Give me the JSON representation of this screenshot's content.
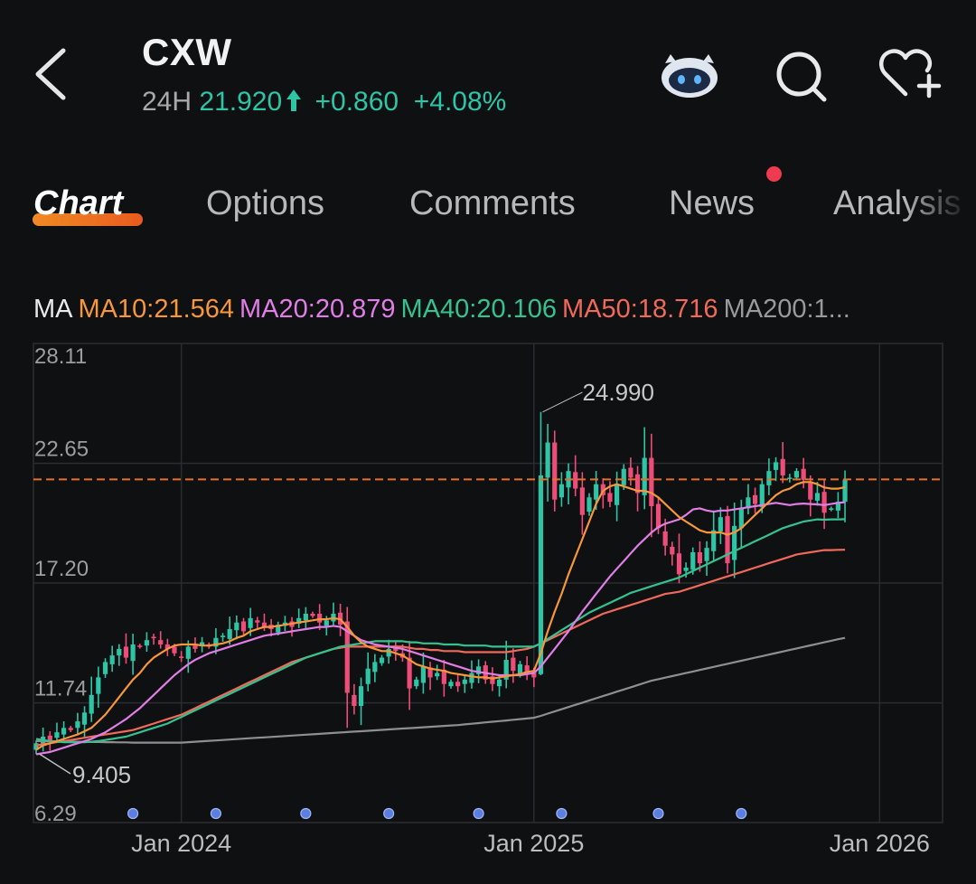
{
  "header": {
    "ticker": "CXW",
    "period": "24H",
    "price": "21.920",
    "change": "+0.860",
    "change_pct": "+4.08%",
    "up_color": "#2ec4a6"
  },
  "icons": [
    "back-icon",
    "robot-assistant-icon",
    "search-icon",
    "favorite-add-icon"
  ],
  "tabs": [
    {
      "label": "Chart",
      "active": true
    },
    {
      "label": "Options"
    },
    {
      "label": "Comments"
    },
    {
      "label": "News",
      "has_dot": true
    },
    {
      "label": "Analysis"
    }
  ],
  "ma_legend": {
    "label": "MA",
    "items": [
      {
        "text": "MA10:21.564",
        "color": "#f5973a"
      },
      {
        "text": "MA20:20.879",
        "color": "#e07ee6"
      },
      {
        "text": "MA40:20.106",
        "color": "#35c28f"
      },
      {
        "text": "MA50:18.716",
        "color": "#f06a5a"
      },
      {
        "text": "MA200:1...",
        "color": "#9a9a9a"
      }
    ]
  },
  "chart_data": {
    "type": "candlestick",
    "y_ticks": [
      "28.11",
      "22.65",
      "17.20",
      "11.74",
      "6.29"
    ],
    "y_tick_values": [
      28.11,
      22.65,
      17.2,
      11.74,
      6.29
    ],
    "x_ticks": [
      "Jan 2024",
      "Jan 2025",
      "Jan 2026"
    ],
    "x_tick_index": [
      21,
      72,
      122
    ],
    "total_slots": 132,
    "high_annotation": "24.990",
    "low_annotation": "9.405",
    "current_price": 21.92,
    "current_price_color": "#e8702a",
    "up_color": "#2ec4a6",
    "down_color": "#ee4d7a",
    "grid": true,
    "event_marker_index": [
      14,
      26,
      39,
      51,
      64,
      76,
      90,
      102
    ],
    "closes": [
      9.9,
      10.2,
      10.0,
      10.4,
      10.6,
      10.5,
      10.9,
      11.3,
      12.1,
      12.9,
      13.6,
      13.9,
      14.2,
      13.8,
      14.4,
      14.3,
      14.6,
      14.7,
      14.4,
      14.2,
      14.0,
      13.8,
      14.3,
      14.2,
      14.5,
      14.3,
      14.7,
      14.8,
      15.1,
      15.4,
      15.0,
      15.6,
      15.4,
      15.2,
      15.1,
      15.3,
      15.4,
      15.2,
      15.6,
      15.8,
      15.7,
      15.4,
      15.5,
      15.8,
      15.3,
      12.2,
      11.6,
      12.5,
      13.3,
      13.6,
      13.8,
      14.2,
      14.1,
      13.8,
      12.4,
      12.8,
      13.4,
      12.9,
      13.1,
      12.6,
      12.7,
      12.5,
      12.8,
      13.1,
      13.4,
      12.8,
      12.6,
      12.8,
      13.7,
      13.2,
      13.5,
      13.1,
      12.9,
      22.1,
      23.6,
      21.0,
      21.7,
      22.3,
      21.5,
      20.3,
      21.1,
      21.7,
      21.2,
      20.9,
      21.7,
      22.4,
      22.0,
      21.3,
      22.9,
      20.7,
      19.7,
      18.9,
      18.5,
      17.6,
      17.9,
      18.6,
      18.1,
      18.8,
      19.6,
      20.2,
      18.1,
      19.8,
      20.6,
      21.1,
      20.8,
      21.7,
      22.3,
      22.7,
      22.1,
      22.0,
      22.3,
      21.9,
      21.0,
      21.3,
      20.4,
      20.6,
      20.9,
      21.9
    ],
    "ma10": [
      9.6,
      9.8,
      9.9,
      10.0,
      10.1,
      10.2,
      10.3,
      10.45,
      10.6,
      10.9,
      11.2,
      11.6,
      12.0,
      12.4,
      12.8,
      13.1,
      13.5,
      13.8,
      14.0,
      14.2,
      14.35,
      14.4,
      14.4,
      14.4,
      14.35,
      14.35,
      14.4,
      14.45,
      14.55,
      14.7,
      14.8,
      15.0,
      15.1,
      15.2,
      15.2,
      15.25,
      15.3,
      15.35,
      15.4,
      15.45,
      15.5,
      15.55,
      15.55,
      15.6,
      15.55,
      15.2,
      14.8,
      14.5,
      14.3,
      14.2,
      14.1,
      14.1,
      14.0,
      13.9,
      13.7,
      13.5,
      13.4,
      13.3,
      13.25,
      13.2,
      13.1,
      13.05,
      13.0,
      12.95,
      12.9,
      12.9,
      12.85,
      12.9,
      12.95,
      13.0,
      13.05,
      13.15,
      13.2,
      14.0,
      15.0,
      15.9,
      16.7,
      17.6,
      18.4,
      19.2,
      20.0,
      20.8,
      21.4,
      21.6,
      21.7,
      21.6,
      21.5,
      21.4,
      21.4,
      21.3,
      21.1,
      20.8,
      20.5,
      20.2,
      20.0,
      19.8,
      19.6,
      19.5,
      19.5,
      19.5,
      19.4,
      19.5,
      19.7,
      20.0,
      20.3,
      20.6,
      20.9,
      21.2,
      21.4,
      21.5,
      21.7,
      21.8,
      21.8,
      21.7,
      21.55,
      21.5,
      21.5,
      21.56
    ],
    "ma20": [
      9.4,
      9.45,
      9.5,
      9.6,
      9.7,
      9.8,
      9.9,
      10.0,
      10.1,
      10.25,
      10.4,
      10.6,
      10.8,
      11.0,
      11.25,
      11.5,
      11.8,
      12.1,
      12.4,
      12.7,
      13.0,
      13.25,
      13.5,
      13.7,
      13.85,
      14.0,
      14.1,
      14.2,
      14.3,
      14.4,
      14.5,
      14.6,
      14.7,
      14.8,
      14.85,
      14.9,
      14.95,
      15.0,
      15.05,
      15.1,
      15.15,
      15.2,
      15.2,
      15.25,
      15.2,
      15.0,
      14.8,
      14.6,
      14.5,
      14.4,
      14.35,
      14.3,
      14.25,
      14.2,
      14.1,
      14.0,
      13.9,
      13.8,
      13.7,
      13.6,
      13.5,
      13.4,
      13.3,
      13.2,
      13.15,
      13.1,
      13.05,
      13.0,
      13.0,
      13.0,
      13.0,
      13.05,
      13.1,
      13.4,
      13.8,
      14.2,
      14.6,
      15.0,
      15.45,
      15.9,
      16.3,
      16.7,
      17.1,
      17.5,
      17.85,
      18.2,
      18.55,
      18.9,
      19.2,
      19.5,
      19.75,
      19.9,
      20.0,
      20.1,
      20.3,
      20.55,
      20.6,
      20.5,
      20.45,
      20.5,
      20.5,
      20.55,
      20.6,
      20.65,
      20.7,
      20.75,
      20.8,
      20.85,
      20.8,
      20.75,
      20.8,
      20.82,
      20.8,
      20.78,
      20.75,
      20.8,
      20.85,
      20.88
    ],
    "ma40": [
      10.1,
      10.05,
      10.0,
      9.98,
      9.95,
      9.95,
      9.95,
      9.95,
      9.97,
      10.0,
      10.05,
      10.1,
      10.15,
      10.2,
      10.3,
      10.4,
      10.5,
      10.6,
      10.7,
      10.8,
      10.95,
      11.1,
      11.25,
      11.4,
      11.55,
      11.7,
      11.85,
      12.0,
      12.15,
      12.3,
      12.45,
      12.6,
      12.75,
      12.9,
      13.05,
      13.2,
      13.35,
      13.5,
      13.65,
      13.8,
      13.9,
      14.0,
      14.1,
      14.2,
      14.3,
      14.35,
      14.4,
      14.45,
      14.5,
      14.55,
      14.55,
      14.55,
      14.55,
      14.55,
      14.5,
      14.5,
      14.45,
      14.45,
      14.45,
      14.4,
      14.4,
      14.4,
      14.35,
      14.35,
      14.35,
      14.35,
      14.3,
      14.3,
      14.3,
      14.3,
      14.3,
      14.3,
      14.3,
      14.45,
      14.65,
      14.85,
      15.05,
      15.25,
      15.45,
      15.65,
      15.85,
      16.0,
      16.15,
      16.3,
      16.45,
      16.6,
      16.75,
      16.85,
      16.95,
      17.05,
      17.15,
      17.25,
      17.35,
      17.45,
      17.6,
      17.75,
      17.9,
      18.05,
      18.2,
      18.35,
      18.5,
      18.65,
      18.8,
      18.95,
      19.1,
      19.25,
      19.4,
      19.55,
      19.7,
      19.8,
      19.9,
      20.0,
      20.05,
      20.1,
      20.08,
      20.1,
      20.1,
      20.106
    ],
    "ma50": [
      9.8,
      9.85,
      9.9,
      9.95,
      10.0,
      10.05,
      10.1,
      10.15,
      10.2,
      10.25,
      10.3,
      10.35,
      10.4,
      10.45,
      10.5,
      10.6,
      10.7,
      10.8,
      10.9,
      11.0,
      11.1,
      11.2,
      11.35,
      11.5,
      11.65,
      11.8,
      11.95,
      12.1,
      12.25,
      12.4,
      12.55,
      12.7,
      12.85,
      13.0,
      13.15,
      13.3,
      13.45,
      13.6,
      13.7,
      13.8,
      13.9,
      14.0,
      14.1,
      14.2,
      14.25,
      14.3,
      14.3,
      14.3,
      14.3,
      14.3,
      14.3,
      14.3,
      14.3,
      14.3,
      14.25,
      14.2,
      14.2,
      14.15,
      14.15,
      14.1,
      14.1,
      14.1,
      14.05,
      14.05,
      14.05,
      14.05,
      14.05,
      14.05,
      14.05,
      14.1,
      14.15,
      14.2,
      14.3,
      14.45,
      14.6,
      14.75,
      14.9,
      15.05,
      15.2,
      15.35,
      15.5,
      15.65,
      15.8,
      15.9,
      16.0,
      16.1,
      16.2,
      16.3,
      16.4,
      16.5,
      16.6,
      16.7,
      16.75,
      16.8,
      16.9,
      17.0,
      17.1,
      17.2,
      17.3,
      17.4,
      17.5,
      17.6,
      17.7,
      17.8,
      17.9,
      18.0,
      18.1,
      18.2,
      18.3,
      18.4,
      18.5,
      18.55,
      18.6,
      18.65,
      18.7,
      18.7,
      18.71,
      18.716
    ],
    "ma200": [
      10.0,
      10.0,
      9.99,
      9.99,
      9.98,
      9.98,
      9.97,
      9.97,
      9.96,
      9.96,
      9.95,
      9.95,
      9.94,
      9.94,
      9.93,
      9.93,
      9.93,
      9.93,
      9.93,
      9.93,
      9.93,
      9.93,
      9.95,
      9.97,
      9.99,
      10.01,
      10.03,
      10.05,
      10.07,
      10.09,
      10.11,
      10.13,
      10.15,
      10.17,
      10.19,
      10.21,
      10.23,
      10.25,
      10.27,
      10.29,
      10.31,
      10.33,
      10.35,
      10.37,
      10.39,
      10.41,
      10.43,
      10.45,
      10.47,
      10.49,
      10.51,
      10.53,
      10.55,
      10.57,
      10.59,
      10.61,
      10.63,
      10.65,
      10.67,
      10.69,
      10.71,
      10.73,
      10.76,
      10.79,
      10.82,
      10.85,
      10.88,
      10.91,
      10.94,
      10.97,
      11.0,
      11.03,
      11.06,
      11.15,
      11.25,
      11.35,
      11.45,
      11.55,
      11.65,
      11.75,
      11.85,
      11.95,
      12.05,
      12.15,
      12.25,
      12.35,
      12.45,
      12.55,
      12.65,
      12.75,
      12.82,
      12.89,
      12.96,
      13.03,
      13.1,
      13.17,
      13.24,
      13.31,
      13.38,
      13.45,
      13.52,
      13.59,
      13.66,
      13.73,
      13.8,
      13.87,
      13.94,
      14.01,
      14.08,
      14.15,
      14.22,
      14.29,
      14.36,
      14.43,
      14.5,
      14.57,
      14.64,
      14.7
    ]
  }
}
